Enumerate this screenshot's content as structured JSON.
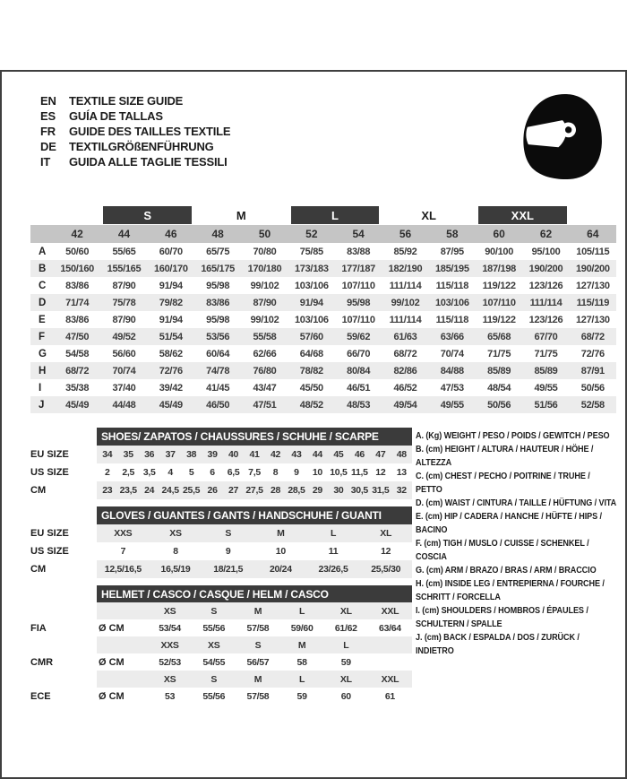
{
  "header": {
    "languages": [
      {
        "code": "EN",
        "title": "TEXTILE SIZE GUIDE"
      },
      {
        "code": "ES",
        "title": "GUÍA DE TALLAS"
      },
      {
        "code": "FR",
        "title": "GUIDE DES TAILLES TEXTILE"
      },
      {
        "code": "DE",
        "title": "TEXTILGRÖßENFÜHRUNG"
      },
      {
        "code": "IT",
        "title": "GUIDA ALLE TAGLIE TESSILI"
      }
    ],
    "icon": "racing-helmet-icon"
  },
  "colors": {
    "dark_bar": "#3b3b3b",
    "number_band": "#c5c5c5",
    "row_stripe": "#ececec",
    "frame_border": "#3f3f3f"
  },
  "main_table": {
    "size_groups": [
      {
        "label": "S",
        "style": "bar"
      },
      {
        "label": "M",
        "style": "text"
      },
      {
        "label": "L",
        "style": "bar"
      },
      {
        "label": "XL",
        "style": "text"
      },
      {
        "label": "XXL",
        "style": "bar"
      }
    ],
    "columns": [
      "42",
      "44",
      "46",
      "48",
      "50",
      "52",
      "54",
      "56",
      "58",
      "60",
      "62",
      "64"
    ],
    "rows": [
      {
        "letter": "A",
        "values": [
          "50/60",
          "55/65",
          "60/70",
          "65/75",
          "70/80",
          "75/85",
          "83/88",
          "85/92",
          "87/95",
          "90/100",
          "95/100",
          "105/115"
        ]
      },
      {
        "letter": "B",
        "values": [
          "150/160",
          "155/165",
          "160/170",
          "165/175",
          "170/180",
          "173/183",
          "177/187",
          "182/190",
          "185/195",
          "187/198",
          "190/200",
          "190/200"
        ]
      },
      {
        "letter": "C",
        "values": [
          "83/86",
          "87/90",
          "91/94",
          "95/98",
          "99/102",
          "103/106",
          "107/110",
          "111/114",
          "115/118",
          "119/122",
          "123/126",
          "127/130"
        ]
      },
      {
        "letter": "D",
        "values": [
          "71/74",
          "75/78",
          "79/82",
          "83/86",
          "87/90",
          "91/94",
          "95/98",
          "99/102",
          "103/106",
          "107/110",
          "111/114",
          "115/119"
        ]
      },
      {
        "letter": "E",
        "values": [
          "83/86",
          "87/90",
          "91/94",
          "95/98",
          "99/102",
          "103/106",
          "107/110",
          "111/114",
          "115/118",
          "119/122",
          "123/126",
          "127/130"
        ]
      },
      {
        "letter": "F",
        "values": [
          "47/50",
          "49/52",
          "51/54",
          "53/56",
          "55/58",
          "57/60",
          "59/62",
          "61/63",
          "63/66",
          "65/68",
          "67/70",
          "68/72"
        ]
      },
      {
        "letter": "G",
        "values": [
          "54/58",
          "56/60",
          "58/62",
          "60/64",
          "62/66",
          "64/68",
          "66/70",
          "68/72",
          "70/74",
          "71/75",
          "71/75",
          "72/76"
        ]
      },
      {
        "letter": "H",
        "values": [
          "68/72",
          "70/74",
          "72/76",
          "74/78",
          "76/80",
          "78/82",
          "80/84",
          "82/86",
          "84/88",
          "85/89",
          "85/89",
          "87/91"
        ]
      },
      {
        "letter": "I",
        "values": [
          "35/38",
          "37/40",
          "39/42",
          "41/45",
          "43/47",
          "45/50",
          "46/51",
          "46/52",
          "47/53",
          "48/54",
          "49/55",
          "50/56"
        ]
      },
      {
        "letter": "J",
        "values": [
          "45/49",
          "44/48",
          "45/49",
          "46/50",
          "47/51",
          "48/52",
          "48/53",
          "49/54",
          "49/55",
          "50/56",
          "51/56",
          "52/58"
        ]
      }
    ]
  },
  "shoes": {
    "title": "SHOES/ ZAPATOS / CHAUSSURES / SCHUHE / SCARPE",
    "rows": [
      {
        "label": "EU SIZE",
        "shade": true,
        "values": [
          "34",
          "35",
          "36",
          "37",
          "38",
          "39",
          "40",
          "41",
          "42",
          "43",
          "44",
          "45",
          "46",
          "47",
          "48"
        ]
      },
      {
        "label": "US SIZE",
        "shade": false,
        "values": [
          "2",
          "2,5",
          "3,5",
          "4",
          "5",
          "6",
          "6,5",
          "7,5",
          "8",
          "9",
          "10",
          "10,5",
          "11,5",
          "12",
          "13"
        ]
      },
      {
        "label": "CM",
        "shade": true,
        "values": [
          "23",
          "23,5",
          "24",
          "24,5",
          "25,5",
          "26",
          "27",
          "27,5",
          "28",
          "28,5",
          "29",
          "30",
          "30,5",
          "31,5",
          "32"
        ]
      }
    ]
  },
  "gloves": {
    "title": "GLOVES / GUANTES / GANTS / HANDSCHUHE / GUANTI",
    "rows": [
      {
        "label": "EU SIZE",
        "shade": true,
        "values": [
          "XXS",
          "XS",
          "S",
          "M",
          "L",
          "XL"
        ]
      },
      {
        "label": "US SIZE",
        "shade": false,
        "values": [
          "7",
          "8",
          "9",
          "10",
          "11",
          "12"
        ]
      },
      {
        "label": "CM",
        "shade": true,
        "values": [
          "12,5/16,5",
          "16,5/19",
          "18/21,5",
          "20/24",
          "23/26,5",
          "25,5/30"
        ]
      }
    ]
  },
  "helmet": {
    "title": "HELMET / CASCO / CASQUE / HELM / CASCO",
    "groups": [
      {
        "label": "FIA",
        "unit": "Ø CM",
        "sizes": [
          "XS",
          "S",
          "M",
          "L",
          "XL",
          "XXL"
        ],
        "values": [
          "53/54",
          "55/56",
          "57/58",
          "59/60",
          "61/62",
          "63/64"
        ]
      },
      {
        "label": "CMR",
        "unit": "Ø CM",
        "sizes": [
          "XXS",
          "XS",
          "S",
          "M",
          "L",
          ""
        ],
        "values": [
          "52/53",
          "54/55",
          "56/57",
          "58",
          "59",
          ""
        ]
      },
      {
        "label": "ECE",
        "unit": "Ø CM",
        "sizes": [
          "XS",
          "S",
          "M",
          "L",
          "XL",
          "XXL"
        ],
        "values": [
          "53",
          "55/56",
          "57/58",
          "59",
          "60",
          "61"
        ]
      }
    ]
  },
  "legend": [
    "A. (Kg) WEIGHT / PESO / POIDS / GEWITCH / PESO",
    "B. (cm) HEIGHT / ALTURA / HAUTEUR / HÖHE / ALTEZZA",
    "C. (cm) CHEST / PECHO / POITRINE / TRUHE / PETTO",
    "D. (cm) WAIST / CINTURA / TAILLE / HÜFTUNG / VITA",
    "E. (cm) HIP / CADERA / HANCHE / HÜFTE / HIPS / BACINO",
    "F. (cm) TIGH / MUSLO / CUISSE / SCHENKEL / COSCIA",
    "G. (cm) ARM / BRAZO / BRAS / ARM / BRACCIO",
    "H. (cm) INSIDE LEG / ENTREPIERNA / FOURCHE / SCHRITT / FORCELLA",
    "I. (cm) SHOULDERS / HOMBROS / ÉPAULES / SCHULTERN / SPALLE",
    "J. (cm) BACK / ESPALDA / DOS / ZURÜCK / INDIETRO"
  ]
}
